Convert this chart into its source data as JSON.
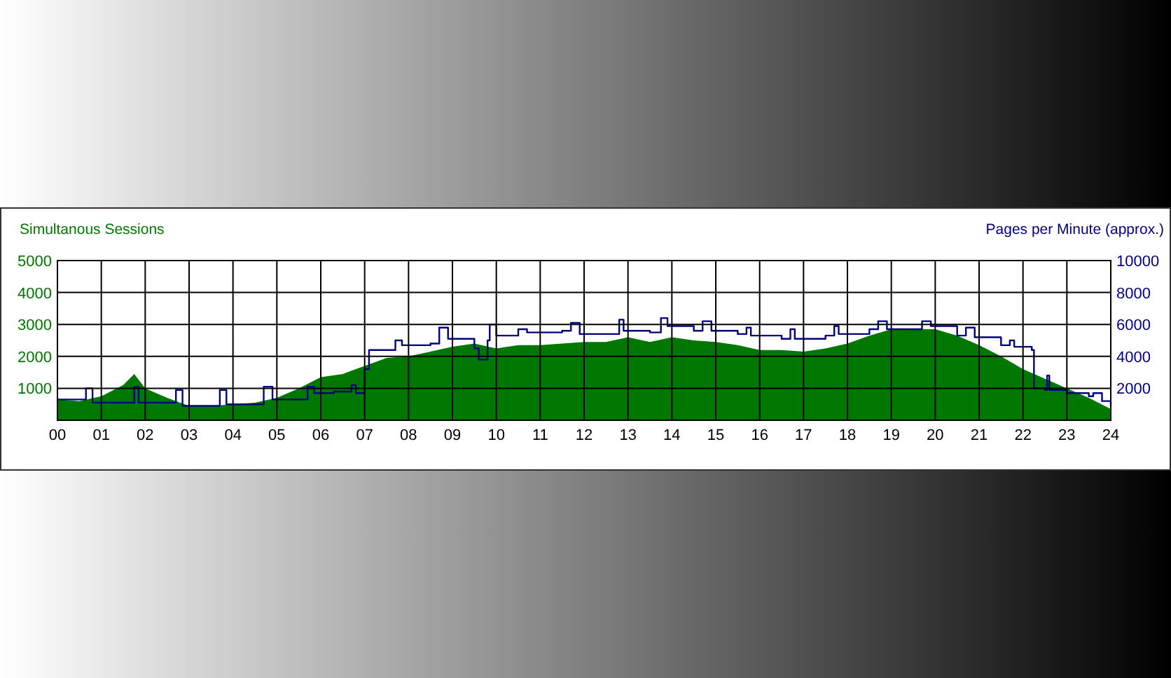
{
  "chart_data": {
    "type": "area",
    "ylabel": "Simultanous Sessions",
    "y2label": "Pages per Minute (approx.)",
    "xlim": [
      0,
      24
    ],
    "xticks": [
      {
        "value": 0,
        "label": "00"
      },
      {
        "value": 1,
        "label": "01"
      },
      {
        "value": 2,
        "label": "02"
      },
      {
        "value": 3,
        "label": "03"
      },
      {
        "value": 4,
        "label": "04"
      },
      {
        "value": 5,
        "label": "05"
      },
      {
        "value": 6,
        "label": "06"
      },
      {
        "value": 7,
        "label": "07"
      },
      {
        "value": 8,
        "label": "08"
      },
      {
        "value": 9,
        "label": "09"
      },
      {
        "value": 10,
        "label": "10"
      },
      {
        "value": 11,
        "label": "11"
      },
      {
        "value": 12,
        "label": "12"
      },
      {
        "value": 13,
        "label": "13"
      },
      {
        "value": 14,
        "label": "14"
      },
      {
        "value": 15,
        "label": "15"
      },
      {
        "value": 16,
        "label": "16"
      },
      {
        "value": 17,
        "label": "17"
      },
      {
        "value": 18,
        "label": "18"
      },
      {
        "value": 19,
        "label": "19"
      },
      {
        "value": 20,
        "label": "20"
      },
      {
        "value": 21,
        "label": "21"
      },
      {
        "value": 22,
        "label": "22"
      },
      {
        "value": 23,
        "label": "23"
      },
      {
        "value": 24,
        "label": "24"
      }
    ],
    "ylim": [
      0,
      5000
    ],
    "yticks": [
      1000,
      2000,
      3000,
      4000,
      5000
    ],
    "y2lim": [
      0,
      10000
    ],
    "y2ticks": [
      2000,
      4000,
      6000,
      8000,
      10000
    ],
    "grid": true,
    "series": [
      {
        "color": "#007800",
        "x": [
          0,
          0.5,
          1,
          1.5,
          1.75,
          2,
          2.5,
          3,
          3.5,
          4,
          4.5,
          5,
          5.5,
          6,
          6.5,
          7,
          7.5,
          8,
          8.5,
          9,
          9.5,
          10,
          10.5,
          11,
          11.5,
          12,
          12.5,
          13,
          13.5,
          14,
          14.5,
          15,
          15.5,
          16,
          16.5,
          17,
          17.5,
          18,
          18.5,
          19,
          19.5,
          20,
          20.5,
          21,
          21.5,
          22,
          22.5,
          23,
          23.5,
          24
        ],
        "values": [
          650,
          600,
          750,
          1100,
          1450,
          1000,
          700,
          450,
          450,
          500,
          550,
          700,
          1000,
          1350,
          1450,
          1700,
          1950,
          2000,
          2150,
          2300,
          2400,
          2250,
          2350,
          2350,
          2400,
          2450,
          2450,
          2600,
          2450,
          2600,
          2500,
          2450,
          2350,
          2200,
          2200,
          2150,
          2250,
          2400,
          2650,
          2850,
          2850,
          2850,
          2650,
          2350,
          2000,
          1600,
          1300,
          1000,
          700,
          350
        ]
      },
      {
        "type": "step",
        "axis": "y2",
        "color": "#000080",
        "x": [
          0,
          0.65,
          0.8,
          1.75,
          1.85,
          2.7,
          2.85,
          3.7,
          3.85,
          4.7,
          4.9,
          5.7,
          5.85,
          6.3,
          6.7,
          6.8,
          7,
          7.1,
          7.7,
          7.85,
          8.5,
          8.7,
          8.9,
          9.5,
          9.6,
          9.8,
          9.85,
          10,
          10.5,
          10.7,
          11.5,
          11.7,
          11.9,
          12.5,
          12.8,
          12.9,
          13.5,
          13.75,
          13.9,
          14.5,
          14.7,
          14.9,
          15.5,
          15.7,
          15.8,
          16.5,
          16.7,
          16.8,
          17.5,
          17.7,
          17.8,
          18.5,
          18.7,
          18.9,
          19.5,
          19.7,
          19.9,
          20.5,
          20.7,
          20.9,
          21.5,
          21.7,
          21.8,
          22.2,
          22.25,
          22.5,
          22.55,
          22.6,
          23,
          23.5,
          23.6,
          23.8,
          24
        ],
        "values": [
          1300,
          2000,
          1100,
          2100,
          1100,
          1900,
          900,
          1900,
          1000,
          2100,
          1300,
          2100,
          1700,
          1800,
          2200,
          1700,
          3200,
          4400,
          5000,
          4700,
          4800,
          5800,
          5100,
          4500,
          3800,
          5000,
          6000,
          5300,
          5700,
          5500,
          5600,
          6100,
          5400,
          5400,
          6300,
          5600,
          5500,
          6400,
          5900,
          5600,
          6200,
          5600,
          5400,
          5800,
          5300,
          5100,
          5700,
          5100,
          5300,
          5900,
          5400,
          5700,
          6200,
          5700,
          5700,
          6200,
          5900,
          5300,
          5800,
          5200,
          4700,
          5000,
          4600,
          4400,
          2000,
          1900,
          2800,
          1900,
          1700,
          1500,
          1700,
          1200,
          900
        ]
      }
    ]
  }
}
